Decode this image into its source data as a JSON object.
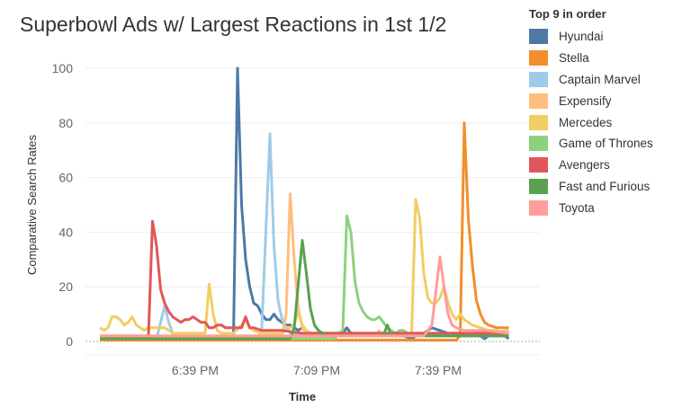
{
  "chart_data": {
    "type": "line",
    "title": "Superbowl Ads w/ Largest Reactions in 1st 1/2",
    "xlabel": "Time",
    "ylabel": "Comparative Search Rates",
    "x_unit": "minutes after 6:15 PM",
    "xlim": [
      0,
      101
    ],
    "ylim": [
      0,
      100
    ],
    "y_ticks": [
      0,
      20,
      40,
      60,
      80,
      100
    ],
    "x_ticks": [
      {
        "t": 24,
        "label": "6:39 PM"
      },
      {
        "t": 54,
        "label": "7:09 PM"
      },
      {
        "t": 84,
        "label": "7:39 PM"
      }
    ],
    "grid": true,
    "legend_title": "Top 9 in order",
    "legend_placement": "right",
    "series": [
      {
        "name": "Hyundai",
        "color": "#4e79a7",
        "points": [
          [
            0,
            1
          ],
          [
            33,
            1
          ],
          [
            34,
            100
          ],
          [
            35,
            50
          ],
          [
            36,
            30
          ],
          [
            37,
            20
          ],
          [
            38,
            14
          ],
          [
            39,
            13
          ],
          [
            40,
            10
          ],
          [
            41,
            8
          ],
          [
            42,
            8
          ],
          [
            43,
            10
          ],
          [
            44,
            8
          ],
          [
            45,
            7
          ],
          [
            46,
            6
          ],
          [
            47,
            6
          ],
          [
            48,
            5
          ],
          [
            49,
            4
          ],
          [
            50,
            5
          ],
          [
            51,
            4
          ],
          [
            52,
            3
          ],
          [
            60,
            3
          ],
          [
            61,
            5
          ],
          [
            62,
            3
          ],
          [
            70,
            3
          ],
          [
            71,
            2
          ],
          [
            75,
            2
          ],
          [
            77,
            1
          ],
          [
            78,
            2
          ],
          [
            80,
            3
          ],
          [
            82,
            5
          ],
          [
            84,
            4
          ],
          [
            86,
            3
          ],
          [
            88,
            3
          ],
          [
            89,
            2
          ],
          [
            94,
            2
          ],
          [
            95,
            1
          ],
          [
            96,
            2
          ],
          [
            100,
            2
          ],
          [
            101,
            1
          ]
        ]
      },
      {
        "name": "Stella",
        "color": "#f28e2b",
        "points": [
          [
            0,
            0.5
          ],
          [
            88,
            0.5
          ],
          [
            89,
            2
          ],
          [
            90,
            80
          ],
          [
            91,
            45
          ],
          [
            92,
            28
          ],
          [
            93,
            15
          ],
          [
            94,
            10
          ],
          [
            95,
            7
          ],
          [
            96,
            6
          ],
          [
            98,
            5
          ],
          [
            101,
            5
          ]
        ]
      },
      {
        "name": "Captain Marvel",
        "color": "#a0cbe8",
        "points": [
          [
            0,
            1
          ],
          [
            14,
            1
          ],
          [
            16,
            13
          ],
          [
            17,
            7
          ],
          [
            18,
            3
          ],
          [
            19,
            1
          ],
          [
            39,
            1
          ],
          [
            40,
            5
          ],
          [
            42,
            76
          ],
          [
            43,
            35
          ],
          [
            44,
            15
          ],
          [
            45,
            8
          ],
          [
            46,
            5
          ],
          [
            47,
            3
          ],
          [
            55,
            2
          ],
          [
            90,
            2
          ],
          [
            101,
            2
          ]
        ]
      },
      {
        "name": "Expensify",
        "color": "#ffbe7d",
        "points": [
          [
            0,
            2
          ],
          [
            45,
            2
          ],
          [
            46,
            10
          ],
          [
            47,
            54
          ],
          [
            48,
            30
          ],
          [
            49,
            12
          ],
          [
            50,
            5
          ],
          [
            51,
            3
          ],
          [
            52,
            2
          ],
          [
            90,
            2
          ],
          [
            95,
            3
          ],
          [
            101,
            4
          ]
        ]
      },
      {
        "name": "Mercedes",
        "color": "#f1ce63",
        "points": [
          [
            0,
            5
          ],
          [
            1,
            4
          ],
          [
            2,
            5
          ],
          [
            3,
            9
          ],
          [
            4,
            9
          ],
          [
            5,
            8
          ],
          [
            6,
            6
          ],
          [
            7,
            7
          ],
          [
            8,
            9
          ],
          [
            9,
            6
          ],
          [
            10,
            5
          ],
          [
            11,
            4
          ],
          [
            12,
            5
          ],
          [
            16,
            5
          ],
          [
            17,
            4
          ],
          [
            18,
            3
          ],
          [
            26,
            3
          ],
          [
            27,
            21
          ],
          [
            28,
            10
          ],
          [
            29,
            4
          ],
          [
            30,
            3
          ],
          [
            33,
            3
          ],
          [
            35,
            6
          ],
          [
            36,
            8
          ],
          [
            37,
            5
          ],
          [
            38,
            4
          ],
          [
            40,
            3
          ],
          [
            45,
            3
          ],
          [
            48,
            6
          ],
          [
            49,
            11
          ],
          [
            50,
            6
          ],
          [
            51,
            4
          ],
          [
            52,
            3
          ],
          [
            60,
            3
          ],
          [
            68,
            2
          ],
          [
            69,
            4
          ],
          [
            70,
            2
          ],
          [
            76,
            2
          ],
          [
            77,
            3
          ],
          [
            78,
            52
          ],
          [
            79,
            45
          ],
          [
            80,
            25
          ],
          [
            81,
            16
          ],
          [
            82,
            14
          ],
          [
            83,
            14
          ],
          [
            84,
            16
          ],
          [
            85,
            20
          ],
          [
            86,
            14
          ],
          [
            87,
            10
          ],
          [
            88,
            8
          ],
          [
            89,
            10
          ],
          [
            90,
            8
          ],
          [
            92,
            6
          ],
          [
            94,
            5
          ],
          [
            96,
            4
          ],
          [
            98,
            4
          ],
          [
            101,
            3
          ]
        ]
      },
      {
        "name": "Game of Thrones",
        "color": "#8cd17d",
        "points": [
          [
            0,
            1
          ],
          [
            58,
            1
          ],
          [
            59,
            3
          ],
          [
            60,
            4
          ],
          [
            61,
            46
          ],
          [
            62,
            40
          ],
          [
            63,
            22
          ],
          [
            64,
            14
          ],
          [
            65,
            11
          ],
          [
            66,
            9
          ],
          [
            67,
            8
          ],
          [
            68,
            8
          ],
          [
            69,
            9
          ],
          [
            70,
            7
          ],
          [
            71,
            5
          ],
          [
            72,
            4
          ],
          [
            73,
            3
          ],
          [
            74,
            4
          ],
          [
            75,
            4
          ],
          [
            76,
            3
          ],
          [
            101,
            3
          ]
        ]
      },
      {
        "name": "Avengers",
        "color": "#e15759",
        "points": [
          [
            0,
            2
          ],
          [
            12,
            2
          ],
          [
            13,
            44
          ],
          [
            14,
            35
          ],
          [
            15,
            19
          ],
          [
            16,
            14
          ],
          [
            17,
            11
          ],
          [
            18,
            9
          ],
          [
            19,
            8
          ],
          [
            20,
            7
          ],
          [
            21,
            8
          ],
          [
            22,
            8
          ],
          [
            23,
            9
          ],
          [
            24,
            8
          ],
          [
            25,
            7
          ],
          [
            26,
            7
          ],
          [
            27,
            5
          ],
          [
            28,
            5
          ],
          [
            29,
            6
          ],
          [
            30,
            6
          ],
          [
            31,
            5
          ],
          [
            35,
            5
          ],
          [
            36,
            9
          ],
          [
            37,
            5
          ],
          [
            38,
            5
          ],
          [
            40,
            4
          ],
          [
            45,
            4
          ],
          [
            50,
            3
          ],
          [
            101,
            3
          ]
        ]
      },
      {
        "name": "Fast and Furious",
        "color": "#59a14f",
        "points": [
          [
            0,
            1
          ],
          [
            47,
            1
          ],
          [
            48,
            5
          ],
          [
            50,
            37
          ],
          [
            51,
            25
          ],
          [
            52,
            12
          ],
          [
            53,
            6
          ],
          [
            54,
            4
          ],
          [
            55,
            3
          ],
          [
            56,
            2
          ],
          [
            70,
            2
          ],
          [
            71,
            6
          ],
          [
            72,
            2
          ],
          [
            101,
            2
          ]
        ]
      },
      {
        "name": "Toyota",
        "color": "#ff9d9a",
        "points": [
          [
            0,
            2
          ],
          [
            80,
            2
          ],
          [
            82,
            6
          ],
          [
            84,
            31
          ],
          [
            85,
            20
          ],
          [
            86,
            10
          ],
          [
            87,
            6
          ],
          [
            88,
            5
          ],
          [
            90,
            4
          ],
          [
            95,
            4
          ],
          [
            101,
            3
          ]
        ]
      }
    ]
  }
}
